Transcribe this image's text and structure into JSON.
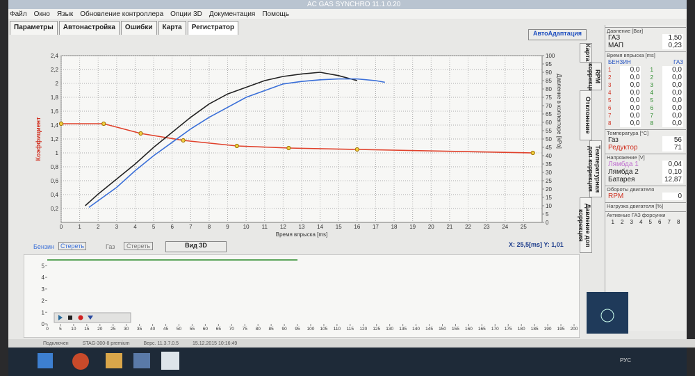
{
  "window_title": "AC GAS SYNCHRO  11.1.0.20",
  "menu": [
    "Файл",
    "Окно",
    "Язык",
    "Обновление контроллера",
    "Опции 3D",
    "Документация",
    "Помощь"
  ],
  "tabs": [
    "Параметры",
    "Автонастройка",
    "Ошибки",
    "Карта",
    "Регистратор"
  ],
  "auto_button": "АвтоАдаптация",
  "vertical_tabs": [
    "Карта",
    "RPM коррекция",
    "Отклонение",
    "Температурная доп коррекция",
    "Давление доп коррекция"
  ],
  "cursor_readout": "X: 25,5[ms]  Y: 1,01",
  "toolbar": {
    "petrol": "Бензин",
    "clear_petrol": "Стереть",
    "gas": "Газ",
    "clear_gas": "Стереть",
    "view3d": "Вид 3D"
  },
  "chart_data": [
    {
      "type": "line",
      "xlabel": "Время впрыска [ms]",
      "ylabel": "Коэффициент",
      "y2label": "Давление в коллекторе [kPa]",
      "xlim": [
        0,
        26
      ],
      "xticks": [
        0,
        1,
        2,
        3,
        4,
        5,
        6,
        7,
        8,
        9,
        10,
        11,
        12,
        13,
        14,
        15,
        16,
        17,
        18,
        19,
        20,
        21,
        22,
        23,
        24,
        25
      ],
      "ylim": [
        0,
        2.4
      ],
      "yticks": [
        {
          "value": 0.2,
          "label": "0,2"
        },
        {
          "value": 0.4,
          "label": "0,4"
        },
        {
          "value": 0.6,
          "label": "0,6"
        },
        {
          "value": 0.8,
          "label": "0,8"
        },
        {
          "value": 1,
          "label": "1"
        },
        {
          "value": 1.2,
          "label": "1,2"
        },
        {
          "value": 1.4,
          "label": "1,4"
        },
        {
          "value": 1.6,
          "label": "1,6"
        },
        {
          "value": 1.8,
          "label": "1,8"
        },
        {
          "value": 2,
          "label": "2"
        },
        {
          "value": 2.2,
          "label": "2,2"
        },
        {
          "value": 2.4,
          "label": "2,4"
        }
      ],
      "y2lim": [
        0,
        100
      ],
      "y2ticks": [
        0,
        5,
        10,
        15,
        20,
        25,
        30,
        35,
        40,
        45,
        50,
        55,
        60,
        65,
        70,
        75,
        80,
        85,
        90,
        95,
        100
      ],
      "grid": true,
      "series": [
        {
          "color": "#e0402a",
          "markers": true,
          "x": [
            0,
            2.3,
            4.3,
            6.6,
            9.5,
            12.3,
            16,
            25.5
          ],
          "values": [
            1.42,
            1.42,
            1.28,
            1.18,
            1.1,
            1.07,
            1.05,
            1.0
          ]
        },
        {
          "name": "Бензин",
          "color": "#222222",
          "axis": "y2",
          "x": [
            1.3,
            2,
            3,
            4,
            5,
            6,
            7,
            8,
            9,
            10,
            11,
            12,
            13,
            14,
            15,
            16
          ],
          "values": [
            10,
            17,
            26,
            35,
            45,
            54,
            63,
            71,
            77,
            81,
            85,
            87.5,
            89,
            90,
            88,
            85
          ]
        },
        {
          "name": "Газ",
          "color": "#3a6fd8",
          "axis": "y2",
          "x": [
            1.5,
            3,
            4,
            5,
            6,
            7,
            8,
            9,
            10,
            11,
            12,
            13,
            14,
            15,
            16,
            17,
            17.5
          ],
          "values": [
            9,
            21,
            31,
            40,
            48,
            56,
            63,
            69,
            75,
            79,
            83,
            84.5,
            85.5,
            86,
            86,
            85,
            84
          ]
        }
      ]
    },
    {
      "type": "line",
      "xlim": [
        0,
        200
      ],
      "xticks": [
        0,
        5,
        10,
        15,
        20,
        25,
        30,
        35,
        40,
        45,
        50,
        55,
        60,
        65,
        70,
        75,
        80,
        85,
        90,
        95,
        100,
        105,
        110,
        115,
        120,
        125,
        130,
        135,
        140,
        145,
        150,
        155,
        160,
        165,
        170,
        175,
        180,
        185,
        190,
        195,
        200
      ],
      "ylim": [
        0,
        5.5
      ],
      "yticks": [
        0,
        1,
        2,
        3,
        4,
        5
      ],
      "grid": false,
      "series": [
        {
          "color": "#2a8a2a",
          "x": [
            0,
            95
          ],
          "values": [
            5.5,
            5.5
          ]
        }
      ]
    }
  ],
  "side_panel": {
    "pressure_title": "Давление [Bar]",
    "pressure": [
      {
        "label": "ГАЗ",
        "value": "1,50"
      },
      {
        "label": "МАП",
        "value": "0,23"
      }
    ],
    "injection_title": "Время впрыска [ms]",
    "injection_headers": [
      "БЕНЗИН",
      "ГАЗ"
    ],
    "cylinders": [
      "1",
      "2",
      "3",
      "4",
      "5",
      "6",
      "7",
      "8"
    ],
    "injection_rows": [
      {
        "petrol": "0,0",
        "gas": "0,0"
      },
      {
        "petrol": "0,0",
        "gas": "0,0"
      },
      {
        "petrol": "0,0",
        "gas": "0,0"
      },
      {
        "petrol": "0,0",
        "gas": "0,0"
      },
      {
        "petrol": "0,0",
        "gas": "0,0"
      },
      {
        "petrol": "0,0",
        "gas": "0,0"
      },
      {
        "petrol": "0,0",
        "gas": "0,0"
      },
      {
        "petrol": "0,0",
        "gas": "0,0"
      }
    ],
    "temperature_title": "Температура [°C]",
    "temperature": [
      {
        "label": "Газ",
        "value": "56"
      },
      {
        "label": "Редуктор",
        "value": "71"
      }
    ],
    "voltage_title": "Напряжение [V]",
    "voltage": [
      {
        "label": "Лямбда 1",
        "value": "0,04"
      },
      {
        "label": "Лямбда 2",
        "value": "0,10"
      },
      {
        "label": "Батарея",
        "value": "12,87"
      }
    ],
    "rpm_title": "Обороты двигателя",
    "rpm": {
      "label": "RPM",
      "value": "0"
    },
    "load_title": "Нагрузка двигателя [%]",
    "injectors_title": "Активные ГАЗ форсунки"
  },
  "status_bar": [
    "Подключен",
    "STAG-300-8 premium",
    "Верс. 11.3.7.0.5",
    "15.12.2015 10:16:49"
  ],
  "taskbar": {
    "language": "РУС"
  }
}
